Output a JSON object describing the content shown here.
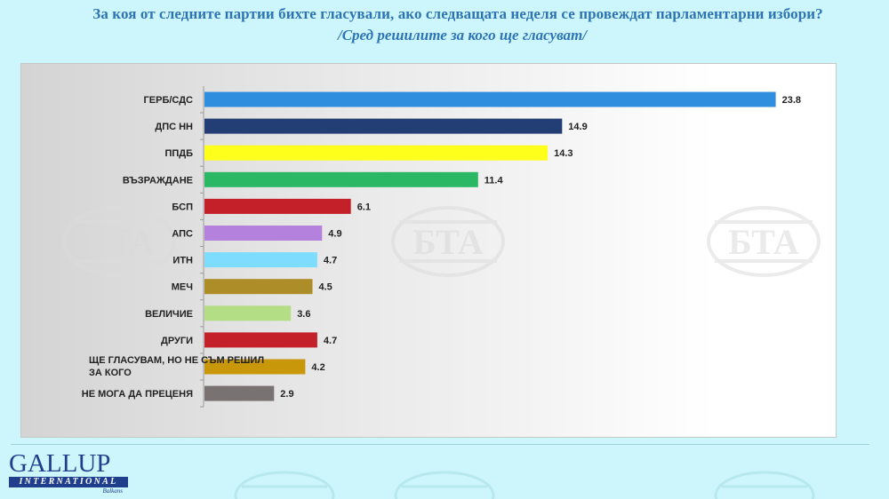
{
  "header": {
    "title": "За коя от следните партии бихте  гласували,  ако следващата неделя се провеждат парламентарни избори?",
    "subtitle": "/Сред решилите за кого ще гласуват/"
  },
  "logo": {
    "name": "GALLUP",
    "band": "INTERNATIONAL",
    "sub": "Balkans"
  },
  "watermark": {
    "text": "БТА"
  },
  "chart_data": {
    "type": "bar",
    "orientation": "horizontal",
    "title": "",
    "xlabel": "",
    "ylabel": "",
    "xlim": [
      0,
      25
    ],
    "grid": false,
    "legend": "none",
    "categories": [
      "ГЕРБ/СДС",
      "ДПС НН",
      "ППДБ",
      "ВЪЗРАЖДАНЕ",
      "БСП",
      "АПС",
      "ИТН",
      "МЕЧ",
      "ВЕЛИЧИЕ",
      "ДРУГИ",
      "ЩЕ ГЛАСУВАМ, НО НЕ СЪМ РЕШИЛ\nЗА КОГО",
      "НЕ МОГА ДА ПРЕЦЕНЯ"
    ],
    "values": [
      23.8,
      14.9,
      14.3,
      11.4,
      6.1,
      4.9,
      4.7,
      4.5,
      3.6,
      4.7,
      4.2,
      2.9
    ],
    "value_labels": [
      "23.8",
      "14.9",
      "14.3",
      "11.4",
      "6.1",
      "4.9",
      "4.7",
      "4.5",
      "3.6",
      "4.7",
      "4.2",
      "2.9"
    ],
    "colors": [
      "#2f8fde",
      "#233e74",
      "#ffff1c",
      "#2ab865",
      "#c4202a",
      "#b482dc",
      "#7edcff",
      "#ad8d27",
      "#b4de86",
      "#c4202a",
      "#c9980a",
      "#787272"
    ]
  }
}
